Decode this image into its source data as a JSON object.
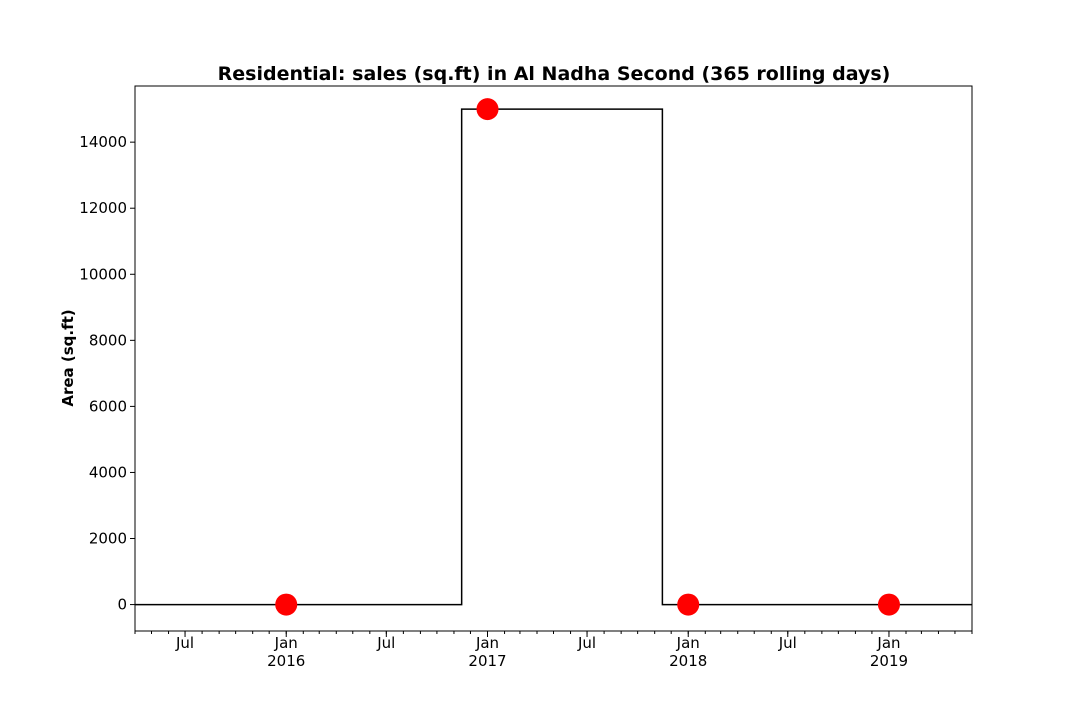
{
  "chart_data": {
    "type": "line",
    "title": "Residential: sales (sq.ft) in Al Nadha Second (365 rolling days)",
    "xlabel": "",
    "ylabel": "Area (sq.ft)",
    "xlim": [
      "2015-04-01",
      "2019-06-01"
    ],
    "ylim": [
      -800,
      15700
    ],
    "y_ticks": [
      0,
      2000,
      4000,
      6000,
      8000,
      10000,
      12000,
      14000
    ],
    "x_major_ticks": [
      {
        "date": "2015-07-01",
        "label": "Jul",
        "sublabel": ""
      },
      {
        "date": "2016-01-01",
        "label": "Jan",
        "sublabel": "2016"
      },
      {
        "date": "2016-07-01",
        "label": "Jul",
        "sublabel": ""
      },
      {
        "date": "2017-01-01",
        "label": "Jan",
        "sublabel": "2017"
      },
      {
        "date": "2017-07-01",
        "label": "Jul",
        "sublabel": ""
      },
      {
        "date": "2018-01-01",
        "label": "Jan",
        "sublabel": "2018"
      },
      {
        "date": "2018-07-01",
        "label": "Jul",
        "sublabel": ""
      },
      {
        "date": "2019-01-01",
        "label": "Jan",
        "sublabel": "2019"
      }
    ],
    "grid": false,
    "series": [
      {
        "type": "step",
        "color": "#000000",
        "x": [
          "2015-04-01",
          "2016-11-15",
          "2016-11-15",
          "2017-11-15",
          "2017-11-15",
          "2019-06-01"
        ],
        "y": [
          0,
          0,
          15000,
          15000,
          0,
          0
        ]
      },
      {
        "type": "scatter",
        "color": "#ff0000",
        "x": [
          "2016-01-01",
          "2017-01-01",
          "2018-01-01",
          "2019-01-01"
        ],
        "y": [
          0,
          15000,
          0,
          0
        ]
      }
    ]
  }
}
